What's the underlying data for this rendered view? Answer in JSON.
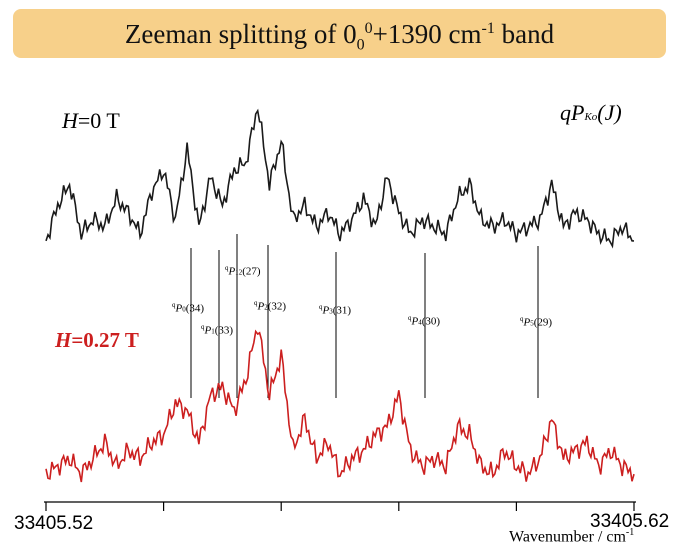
{
  "title": {
    "prefix": "Zeeman splitting of 0",
    "sub": "0",
    "sup": "0",
    "mid": "+1390 cm",
    "sup2": "-1",
    "suffix": " band"
  },
  "colors": {
    "title_bg": "#f7d08a",
    "trace_0T": "#1a1a1a",
    "trace_027T": "#cc1f1f"
  },
  "chart_data": {
    "type": "line",
    "title": "Zeeman splitting of 000+1390 cm-1 band",
    "xlabel": "Wavenumber / cm-1",
    "ylabel": "",
    "xlim": [
      33405.52,
      33405.62
    ],
    "x_tick_labels": [
      "33405.52",
      "33405.62"
    ],
    "series": [
      {
        "name": "H=0 T",
        "x": [
          33405.52,
          33405.522,
          33405.524,
          33405.526,
          33405.528,
          33405.53,
          33405.532,
          33405.534,
          33405.536,
          33405.538,
          33405.54,
          33405.542,
          33405.544,
          33405.546,
          33405.548,
          33405.55,
          33405.552,
          33405.554,
          33405.556,
          33405.558,
          33405.56,
          33405.562,
          33405.564,
          33405.566,
          33405.568,
          33405.57,
          33405.572,
          33405.574,
          33405.576,
          33405.578,
          33405.58,
          33405.582,
          33405.584,
          33405.586,
          33405.588,
          33405.59,
          33405.592,
          33405.594,
          33405.596,
          33405.598,
          33405.6,
          33405.602,
          33405.604,
          33405.606,
          33405.608,
          33405.61,
          33405.612,
          33405.614,
          33405.616,
          33405.618,
          33405.62
        ],
        "values": [
          0.05,
          0.3,
          0.45,
          0.1,
          0.2,
          0.15,
          0.35,
          0.25,
          0.1,
          0.4,
          0.55,
          0.2,
          0.7,
          0.15,
          0.5,
          0.3,
          0.55,
          0.6,
          1.0,
          0.45,
          0.75,
          0.2,
          0.3,
          0.15,
          0.25,
          0.1,
          0.2,
          0.35,
          0.15,
          0.5,
          0.25,
          0.1,
          0.2,
          0.15,
          0.1,
          0.35,
          0.45,
          0.2,
          0.15,
          0.2,
          0.1,
          0.15,
          0.2,
          0.45,
          0.15,
          0.25,
          0.2,
          0.1,
          0.05,
          0.15,
          0.05
        ]
      },
      {
        "name": "H=0.27 T",
        "x": [
          33405.52,
          33405.522,
          33405.524,
          33405.526,
          33405.528,
          33405.53,
          33405.532,
          33405.534,
          33405.536,
          33405.538,
          33405.54,
          33405.542,
          33405.544,
          33405.546,
          33405.548,
          33405.55,
          33405.552,
          33405.554,
          33405.556,
          33405.558,
          33405.56,
          33405.562,
          33405.564,
          33405.566,
          33405.568,
          33405.57,
          33405.572,
          33405.574,
          33405.576,
          33405.578,
          33405.58,
          33405.582,
          33405.584,
          33405.586,
          33405.588,
          33405.59,
          33405.592,
          33405.594,
          33405.596,
          33405.598,
          33405.6,
          33405.602,
          33405.604,
          33405.606,
          33405.608,
          33405.61,
          33405.612,
          33405.614,
          33405.616,
          33405.618,
          33405.62
        ],
        "values": [
          0.05,
          0.1,
          0.15,
          0.05,
          0.15,
          0.25,
          0.1,
          0.2,
          0.15,
          0.25,
          0.3,
          0.5,
          0.45,
          0.25,
          0.55,
          0.6,
          0.45,
          0.65,
          1.0,
          0.55,
          0.8,
          0.2,
          0.4,
          0.15,
          0.25,
          0.05,
          0.15,
          0.2,
          0.3,
          0.35,
          0.55,
          0.2,
          0.1,
          0.15,
          0.1,
          0.35,
          0.3,
          0.1,
          0.05,
          0.2,
          0.1,
          0.05,
          0.15,
          0.4,
          0.15,
          0.2,
          0.25,
          0.1,
          0.2,
          0.1,
          0.05
        ]
      }
    ],
    "grid": false,
    "legend": "inline labels"
  },
  "labels": {
    "h0_var": "H",
    "h0_rest": "=0 T",
    "h1_var": "H",
    "h1_rest": "=0.27 T",
    "qp_main": "qP",
    "qp_sub": "Ko",
    "qp_paren": "(J)"
  },
  "annotations": [
    {
      "sup": "q",
      "p": "P",
      "sub": "0",
      "rest": "(34)"
    },
    {
      "sup": "q",
      "p": "P",
      "sub": "1",
      "rest": "(33)"
    },
    {
      "sup": "q",
      "p": "P",
      "sub": "12",
      "rest": "(27)"
    },
    {
      "sup": "q",
      "p": "P",
      "sub": "2",
      "rest": "(32)"
    },
    {
      "sup": "q",
      "p": "P",
      "sub": "3",
      "rest": "(31)"
    },
    {
      "sup": "q",
      "p": "P",
      "sub": "4",
      "rest": "(30)"
    },
    {
      "sup": "q",
      "p": "P",
      "sub": "5",
      "rest": "(29)"
    }
  ],
  "axis": {
    "tick_left": "33405.52",
    "tick_right": "33405.62",
    "xlabel_main": "Wavenumber / cm",
    "xlabel_sup": "-1"
  }
}
